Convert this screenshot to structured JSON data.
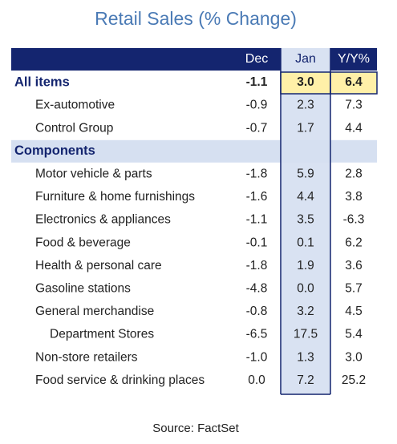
{
  "title": "Retail Sales (% Change)",
  "columns": [
    "Dec",
    "Jan",
    "Y/Y%"
  ],
  "rows": [
    {
      "label": "All items",
      "kind": "total",
      "values": [
        "-1.1",
        "3.0",
        "6.4"
      ]
    },
    {
      "label": "Ex-automotive",
      "kind": "item",
      "values": [
        "-0.9",
        "2.3",
        "7.3"
      ]
    },
    {
      "label": "Control Group",
      "kind": "item",
      "values": [
        "-0.7",
        "1.7",
        "4.4"
      ]
    },
    {
      "label": "Components",
      "kind": "section"
    },
    {
      "label": "Motor vehicle & parts",
      "kind": "item",
      "values": [
        "-1.8",
        "5.9",
        "2.8"
      ]
    },
    {
      "label": "Furniture & home furnishings",
      "kind": "item",
      "values": [
        "-1.6",
        "4.4",
        "3.8"
      ]
    },
    {
      "label": "Electronics & appliances",
      "kind": "item",
      "values": [
        "-1.1",
        "3.5",
        "-6.3"
      ]
    },
    {
      "label": "Food & beverage",
      "kind": "item",
      "values": [
        "-0.1",
        "0.1",
        "6.2"
      ]
    },
    {
      "label": "Health & personal care",
      "kind": "item",
      "values": [
        "-1.8",
        "1.9",
        "3.6"
      ]
    },
    {
      "label": "Gasoline stations",
      "kind": "item",
      "values": [
        "-4.8",
        "0.0",
        "5.7"
      ]
    },
    {
      "label": "General merchandise",
      "kind": "item",
      "values": [
        "-0.8",
        "3.2",
        "4.5"
      ]
    },
    {
      "label": "Department Stores",
      "kind": "subitem",
      "values": [
        "-6.5",
        "17.5",
        "5.4"
      ]
    },
    {
      "label": "Non-store retailers",
      "kind": "item",
      "values": [
        "-1.0",
        "1.3",
        "3.0"
      ]
    },
    {
      "label": "Food service & drinking places",
      "kind": "item",
      "values": [
        "0.0",
        "7.2",
        "25.2"
      ]
    }
  ],
  "source": "Source: FactSet"
}
